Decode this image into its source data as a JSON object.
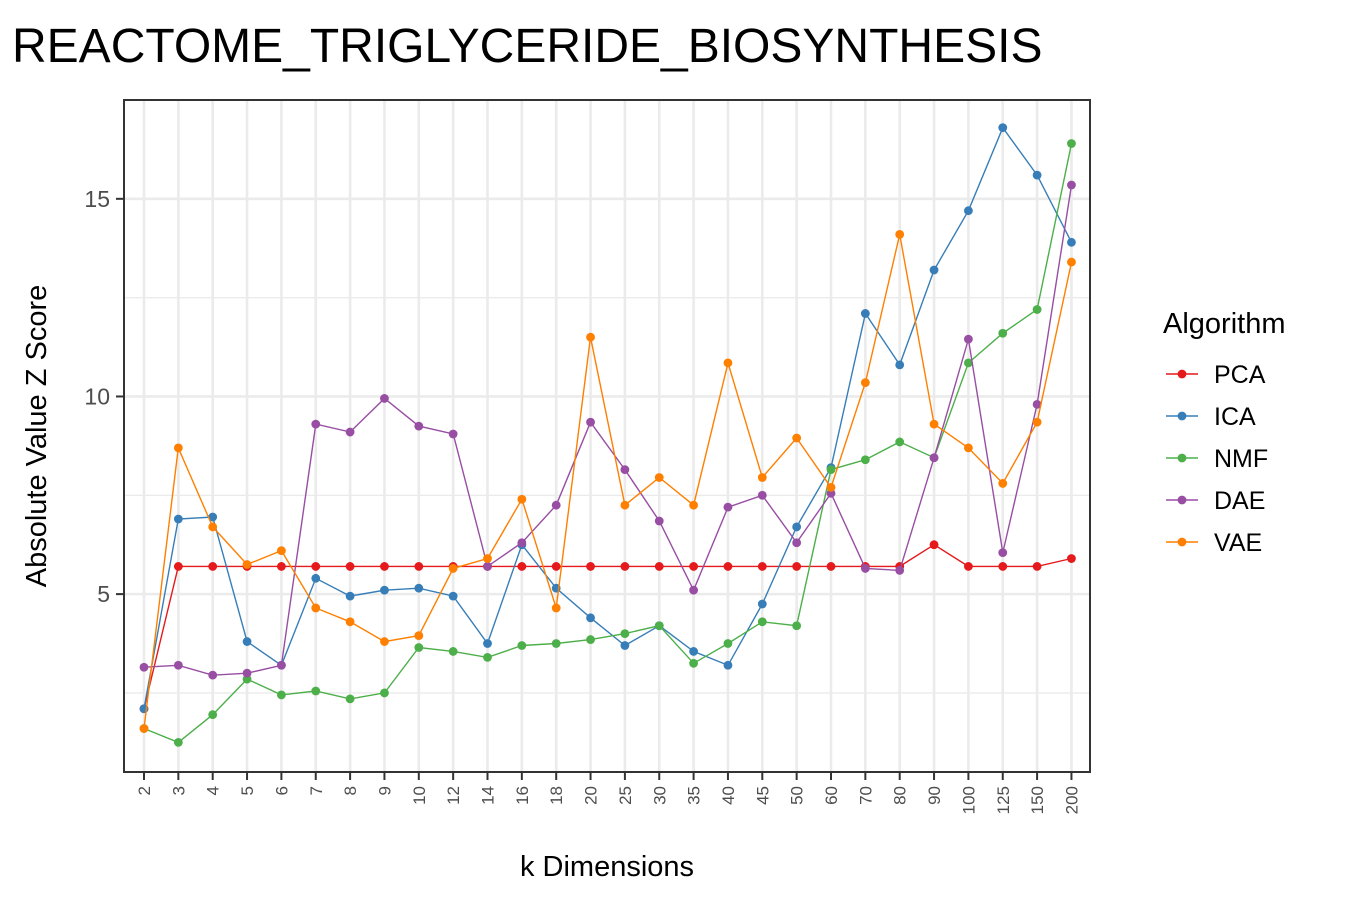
{
  "chart_data": {
    "type": "line",
    "title": "REACTOME_TRIGLYCERIDE_BIOSYNTHESIS",
    "xlabel": "k Dimensions",
    "ylabel": "Absolute Value Z Score",
    "categories": [
      "2",
      "3",
      "4",
      "5",
      "6",
      "7",
      "8",
      "9",
      "10",
      "12",
      "14",
      "16",
      "18",
      "20",
      "25",
      "30",
      "35",
      "40",
      "45",
      "50",
      "60",
      "70",
      "80",
      "90",
      "100",
      "125",
      "150",
      "200"
    ],
    "ylim": [
      0.5,
      17.5
    ],
    "yticks": [
      5,
      10,
      15
    ],
    "grid": true,
    "legend": {
      "title": "Algorithm",
      "position": "right"
    },
    "series": [
      {
        "name": "PCA",
        "color": "#e41a1c",
        "values": [
          2.1,
          5.7,
          5.7,
          5.7,
          5.7,
          5.7,
          5.7,
          5.7,
          5.7,
          5.7,
          5.7,
          5.7,
          5.7,
          5.7,
          5.7,
          5.7,
          5.7,
          5.7,
          5.7,
          5.7,
          5.7,
          5.7,
          5.7,
          6.25,
          5.7,
          5.7,
          5.7,
          5.9
        ]
      },
      {
        "name": "ICA",
        "color": "#377eb8",
        "values": [
          2.1,
          6.9,
          6.95,
          3.8,
          3.2,
          5.4,
          4.95,
          5.1,
          5.15,
          4.95,
          3.75,
          6.25,
          5.15,
          4.4,
          3.7,
          4.2,
          3.55,
          3.2,
          4.75,
          6.7,
          8.2,
          12.1,
          10.8,
          13.2,
          14.7,
          16.8,
          15.6,
          13.9
        ]
      },
      {
        "name": "NMF",
        "color": "#4daf4a",
        "values": [
          1.6,
          1.25,
          1.95,
          2.85,
          2.45,
          2.55,
          2.35,
          2.5,
          3.65,
          3.55,
          3.4,
          3.7,
          3.75,
          3.85,
          4.0,
          4.2,
          3.25,
          3.75,
          4.3,
          4.2,
          8.15,
          8.4,
          8.85,
          8.45,
          10.85,
          11.6,
          12.2,
          16.4
        ]
      },
      {
        "name": "DAE",
        "color": "#984ea3",
        "values": [
          3.15,
          3.2,
          2.95,
          3.0,
          3.2,
          9.3,
          9.1,
          9.95,
          9.25,
          9.05,
          5.7,
          6.3,
          7.25,
          9.35,
          8.15,
          6.85,
          5.1,
          7.2,
          7.5,
          6.3,
          7.55,
          5.65,
          5.6,
          8.45,
          11.45,
          6.05,
          9.8,
          15.35
        ]
      },
      {
        "name": "VAE",
        "color": "#ff7f00",
        "values": [
          1.6,
          8.7,
          6.7,
          5.75,
          6.1,
          4.65,
          4.3,
          3.8,
          3.95,
          5.65,
          5.9,
          7.4,
          4.65,
          11.5,
          7.25,
          7.95,
          7.25,
          10.85,
          7.95,
          8.95,
          7.7,
          10.35,
          14.1,
          9.3,
          8.7,
          7.8,
          9.35,
          13.4
        ]
      }
    ]
  }
}
